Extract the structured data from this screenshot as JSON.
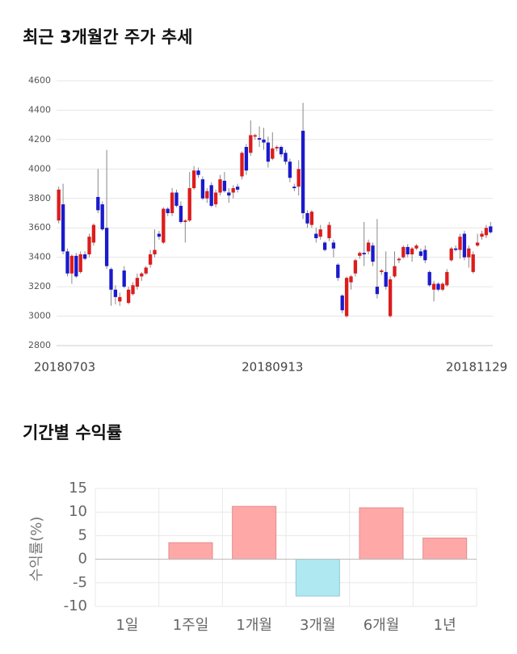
{
  "chart_data": [
    {
      "type": "candlestick",
      "title": "최근 3개월간 주가 추세",
      "categories": [
        "20180703",
        null,
        null,
        null,
        null,
        null,
        null,
        null,
        null,
        null,
        null,
        null,
        null,
        null,
        null,
        null,
        null,
        null,
        null,
        null,
        null,
        null,
        null,
        null,
        null,
        null,
        null,
        null,
        null,
        null,
        null,
        null,
        null,
        null,
        null,
        null,
        null,
        null,
        null,
        null,
        null,
        null,
        null,
        null,
        null,
        null,
        null,
        null,
        null,
        "20180913",
        null,
        null,
        null,
        null,
        null,
        null,
        null,
        null,
        null,
        null,
        null,
        null,
        null,
        null,
        null,
        null,
        null,
        null,
        null,
        null,
        null,
        null,
        null,
        null,
        null,
        null,
        null,
        null,
        null,
        null,
        null,
        null,
        null,
        null,
        null,
        null,
        null,
        null,
        null,
        null,
        null,
        null,
        null,
        null,
        null,
        null,
        null,
        null,
        null,
        "20181129"
      ],
      "open": [
        3650,
        3760,
        3440,
        3290,
        3410,
        3300,
        3420,
        3420,
        3500,
        3810,
        3760,
        3600,
        3320,
        3180,
        3100,
        3310,
        3090,
        3150,
        3200,
        3270,
        3290,
        3350,
        3420,
        3560,
        3500,
        3730,
        3700,
        3840,
        3750,
        3640,
        3650,
        3870,
        3990,
        3930,
        3800,
        3890,
        3760,
        3840,
        3920,
        3840,
        3840,
        3880,
        3950,
        4150,
        4110,
        4220,
        4210,
        4200,
        4180,
        4070,
        4140,
        4150,
        4110,
        4050,
        3880,
        3880,
        4260,
        3700,
        3620,
        3560,
        3540,
        3500,
        3530,
        3500,
        3350,
        3140,
        3000,
        3230,
        3290,
        3410,
        3430,
        3440,
        3480,
        3200,
        3300,
        3300,
        3000,
        3270,
        3380,
        3400,
        3470,
        3420,
        3460,
        3440,
        3450,
        3300,
        3180,
        3220,
        3180,
        3210,
        3380,
        3460,
        3450,
        3560,
        3400,
        3300,
        3480,
        3540,
        3550,
        3610
      ],
      "high": [
        3880,
        3900,
        3460,
        3420,
        3430,
        3440,
        3440,
        3560,
        3630,
        4000,
        3780,
        4130,
        3330,
        3210,
        3160,
        3340,
        3200,
        3230,
        3290,
        3300,
        3340,
        3450,
        3590,
        3580,
        3740,
        3740,
        3870,
        3860,
        3780,
        3660,
        3980,
        4020,
        4010,
        3950,
        3870,
        3910,
        3860,
        3960,
        3980,
        3870,
        3890,
        3900,
        4120,
        4170,
        4330,
        4240,
        4290,
        4280,
        4220,
        4250,
        4160,
        4160,
        4130,
        4070,
        3900,
        4060,
        4450,
        3720,
        3720,
        3600,
        3620,
        3510,
        3640,
        3520,
        3360,
        3150,
        3270,
        3280,
        3390,
        3440,
        3640,
        3520,
        3500,
        3660,
        3320,
        3440,
        3270,
        3440,
        3400,
        3480,
        3490,
        3470,
        3490,
        3460,
        3480,
        3310,
        3240,
        3230,
        3230,
        3320,
        3470,
        3480,
        3560,
        3580,
        3480,
        3440,
        3560,
        3580,
        3620,
        3640
      ],
      "low": [
        3630,
        3420,
        3270,
        3220,
        3260,
        3290,
        3380,
        3400,
        3480,
        3700,
        3580,
        3320,
        3070,
        3080,
        3070,
        3190,
        3080,
        3140,
        3180,
        3240,
        3280,
        3330,
        3400,
        3520,
        3490,
        3680,
        3680,
        3740,
        3630,
        3500,
        3640,
        3860,
        3940,
        3790,
        3770,
        3740,
        3740,
        3820,
        3840,
        3770,
        3800,
        3840,
        3930,
        3960,
        4090,
        4200,
        4150,
        4130,
        4010,
        4060,
        4120,
        4080,
        4030,
        3910,
        3850,
        3820,
        3660,
        3600,
        3600,
        3500,
        3520,
        3440,
        3510,
        3400,
        3240,
        3020,
        2990,
        3180,
        3270,
        3390,
        3340,
        3420,
        3340,
        3120,
        3280,
        3180,
        2990,
        3260,
        3360,
        3390,
        3400,
        3370,
        3450,
        3400,
        3360,
        3200,
        3100,
        3170,
        3170,
        3200,
        3370,
        3440,
        3390,
        3380,
        3330,
        3290,
        3470,
        3520,
        3530,
        3560
      ],
      "close": [
        3860,
        3440,
        3290,
        3410,
        3270,
        3420,
        3390,
        3540,
        3620,
        3720,
        3590,
        3340,
        3180,
        3130,
        3130,
        3200,
        3180,
        3210,
        3260,
        3290,
        3330,
        3420,
        3450,
        3540,
        3730,
        3700,
        3840,
        3750,
        3640,
        3650,
        3870,
        3990,
        3960,
        3800,
        3850,
        3750,
        3840,
        3930,
        3850,
        3820,
        3870,
        3860,
        4110,
        3990,
        4230,
        4230,
        4200,
        4180,
        4050,
        4140,
        4150,
        4100,
        4050,
        3940,
        3870,
        4000,
        3700,
        3630,
        3710,
        3530,
        3590,
        3450,
        3620,
        3460,
        3260,
        3040,
        3260,
        3270,
        3380,
        3430,
        3420,
        3500,
        3370,
        3150,
        3310,
        3200,
        3250,
        3340,
        3390,
        3470,
        3420,
        3460,
        3480,
        3410,
        3380,
        3210,
        3220,
        3180,
        3220,
        3300,
        3460,
        3450,
        3540,
        3400,
        3460,
        3420,
        3500,
        3560,
        3600,
        3570
      ],
      "up_color": "#dd1c1c",
      "down_color": "#1a1acc",
      "ylim": [
        2800,
        4600
      ],
      "yticks": [
        2800,
        3000,
        3200,
        3400,
        3600,
        3800,
        4000,
        4200,
        4400,
        4600
      ],
      "grid": true
    },
    {
      "type": "bar",
      "title": "기간별 수익률",
      "ylabel": "수익률(%)",
      "categories": [
        "1일",
        "1주일",
        "1개월",
        "3개월",
        "6개월",
        "1년"
      ],
      "values": [
        null,
        3.5,
        11.2,
        -7.8,
        10.9,
        4.5
      ],
      "positive_color": "#ffa8a8",
      "negative_color": "#b0e8f2",
      "ylim": [
        -10,
        15
      ],
      "yticks": [
        -10,
        -5,
        0,
        5,
        10,
        15
      ],
      "grid": true
    }
  ]
}
